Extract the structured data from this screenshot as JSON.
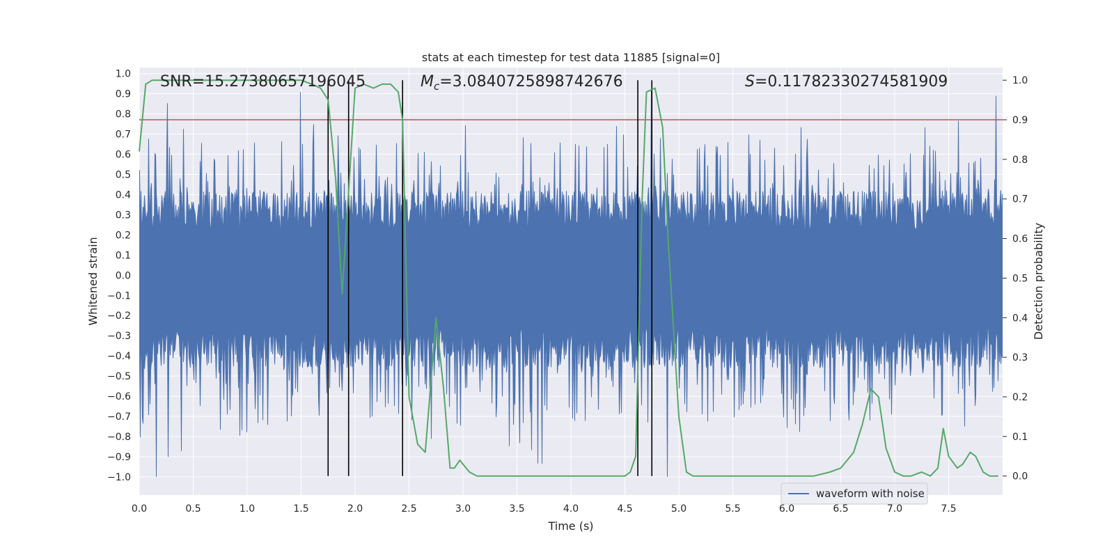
{
  "chart_data": {
    "type": "line",
    "title": "stats at each timestep for test data 11885 [signal=0]",
    "xlabel": "Time (s)",
    "ylabel_left": "Whitened strain",
    "ylabel_right": "Detection probability",
    "xlim": [
      0.0,
      8.0
    ],
    "ylim_left": [
      -1.09,
      1.03
    ],
    "ylim_right": [
      -0.048,
      1.032
    ],
    "x_ticks": [
      "0.0",
      "0.5",
      "1.0",
      "1.5",
      "2.0",
      "2.5",
      "3.0",
      "3.5",
      "4.0",
      "4.5",
      "5.0",
      "5.5",
      "6.0",
      "6.5",
      "7.0",
      "7.5"
    ],
    "y_ticks_left": [
      "1.0",
      "0.9",
      "0.8",
      "0.7",
      "0.6",
      "0.5",
      "0.4",
      "0.3",
      "0.2",
      "0.1",
      "0.0",
      "−0.1",
      "−0.2",
      "−0.3",
      "−0.4",
      "−0.5",
      "−0.6",
      "−0.7",
      "−0.8",
      "−0.9",
      "−1.0"
    ],
    "y_ticks_right": [
      "1.0",
      "0.9",
      "0.8",
      "0.7",
      "0.6",
      "0.5",
      "0.4",
      "0.3",
      "0.2",
      "0.1",
      "0.0"
    ],
    "grid": true,
    "annotations": {
      "snr": "SNR=15.27380657196045",
      "mc": "=3.0840725898742676",
      "s": "=0.11782330274581909"
    },
    "threshold": {
      "y": 0.9,
      "color": "#c44e52"
    },
    "vlines": [
      1.75,
      1.94,
      2.44,
      4.62,
      4.75
    ],
    "legend": {
      "label": "waveform with noise",
      "loc": "lower right"
    },
    "series": [
      {
        "name": "waveform with noise",
        "axis": "left",
        "color": "#4c72b0",
        "description": "whitened strain, noise only, ~8 s at high sample rate"
      },
      {
        "name": "detection probability",
        "axis": "right",
        "color": "#55a868",
        "x": [
          0.0,
          0.06,
          0.12,
          0.25,
          0.5,
          1.0,
          1.5,
          1.6,
          1.68,
          1.75,
          1.82,
          1.88,
          1.94,
          2.0,
          2.08,
          2.17,
          2.25,
          2.33,
          2.4,
          2.44,
          2.5,
          2.58,
          2.65,
          2.75,
          2.82,
          2.88,
          2.92,
          2.97,
          3.0,
          3.06,
          3.13,
          3.25,
          3.38,
          4.0,
          4.5,
          4.55,
          4.6,
          4.66,
          4.7,
          4.78,
          4.85,
          4.9,
          5.0,
          5.07,
          5.13,
          5.25,
          5.5,
          6.0,
          6.25,
          6.4,
          6.5,
          6.56,
          6.62,
          6.7,
          6.78,
          6.85,
          6.92,
          7.0,
          7.08,
          7.15,
          7.25,
          7.33,
          7.4,
          7.45,
          7.5,
          7.58,
          7.63,
          7.7,
          7.75,
          7.82,
          7.88,
          7.96
        ],
        "y": [
          0.82,
          0.99,
          1.0,
          1.0,
          1.0,
          1.0,
          1.0,
          0.99,
          0.98,
          0.95,
          0.75,
          0.46,
          0.72,
          0.98,
          0.99,
          0.98,
          0.99,
          0.99,
          0.97,
          0.9,
          0.2,
          0.08,
          0.06,
          0.4,
          0.22,
          0.02,
          0.02,
          0.04,
          0.03,
          0.01,
          0.0,
          0.0,
          0.0,
          0.0,
          0.0,
          0.01,
          0.05,
          0.7,
          0.97,
          0.98,
          0.88,
          0.6,
          0.15,
          0.01,
          0.0,
          0.0,
          0.0,
          0.0,
          0.0,
          0.01,
          0.02,
          0.04,
          0.06,
          0.13,
          0.22,
          0.2,
          0.07,
          0.01,
          0.0,
          0.0,
          0.01,
          0.0,
          0.02,
          0.12,
          0.05,
          0.02,
          0.03,
          0.06,
          0.05,
          0.01,
          0.0,
          0.0
        ]
      }
    ]
  }
}
